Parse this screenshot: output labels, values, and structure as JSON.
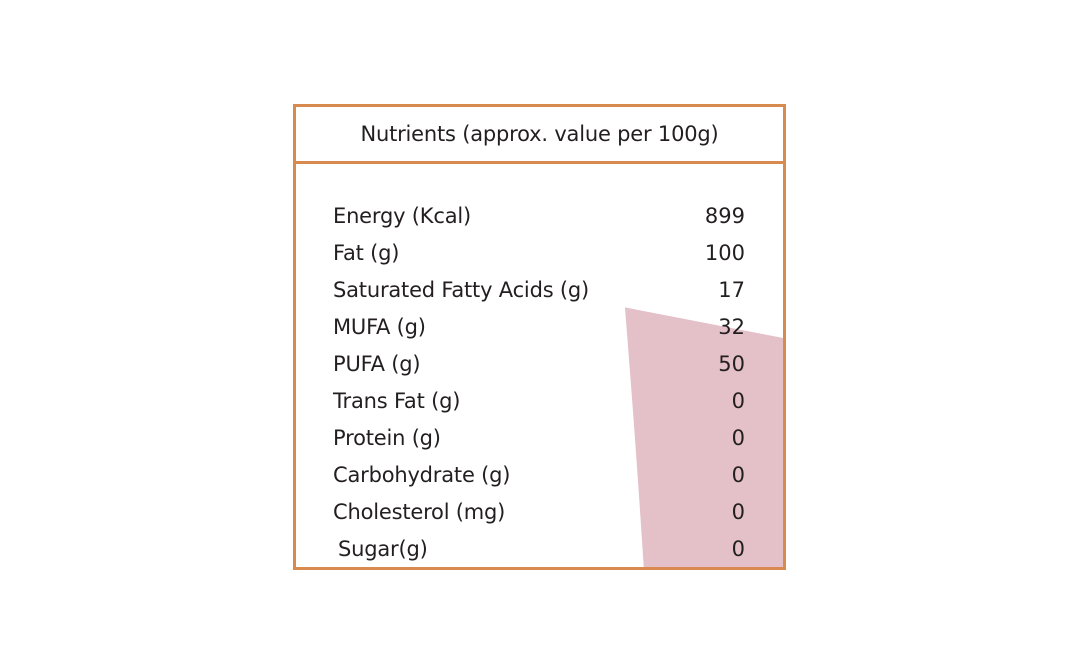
{
  "header": {
    "title": "Nutrients (approx. value per 100g)"
  },
  "nutrients": [
    {
      "name": "Energy (Kcal)",
      "value": "899"
    },
    {
      "name": "Fat (g)",
      "value": "100"
    },
    {
      "name": "Saturated Fatty Acids (g)",
      "value": "17"
    },
    {
      "name": "MUFA (g)",
      "value": "32"
    },
    {
      "name": "PUFA (g)",
      "value": "50"
    },
    {
      "name": "Trans Fat (g)",
      "value": "0"
    },
    {
      "name": "Protein (g)",
      "value": "0"
    },
    {
      "name": "Carbohydrate (g)",
      "value": "0"
    },
    {
      "name": "Cholesterol (mg)",
      "value": "0"
    },
    {
      "name": "Sugar(g)",
      "value": "0"
    }
  ],
  "colors": {
    "border": "#d98a4e",
    "highlight": "#d9a7b3",
    "text": "#231f20"
  }
}
